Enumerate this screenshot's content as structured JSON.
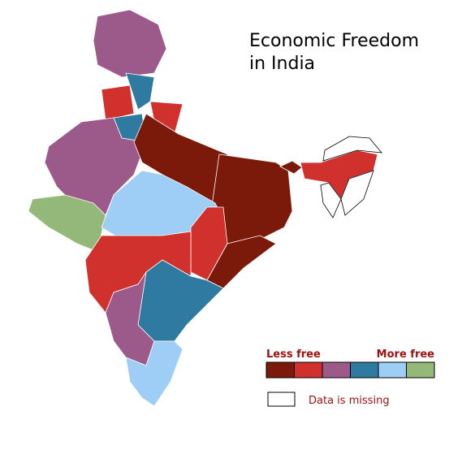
{
  "title_lines": [
    "Economic Freedom",
    "in India"
  ],
  "legend": {
    "low_label": "Less free",
    "high_label": "More free",
    "colors": [
      "#7b1a0a",
      "#d0312d",
      "#9b5a8a",
      "#2e7aa0",
      "#9ecdf5",
      "#94b77a"
    ],
    "missing_label": "Data is missing",
    "missing_color": "#ffffff"
  }
}
